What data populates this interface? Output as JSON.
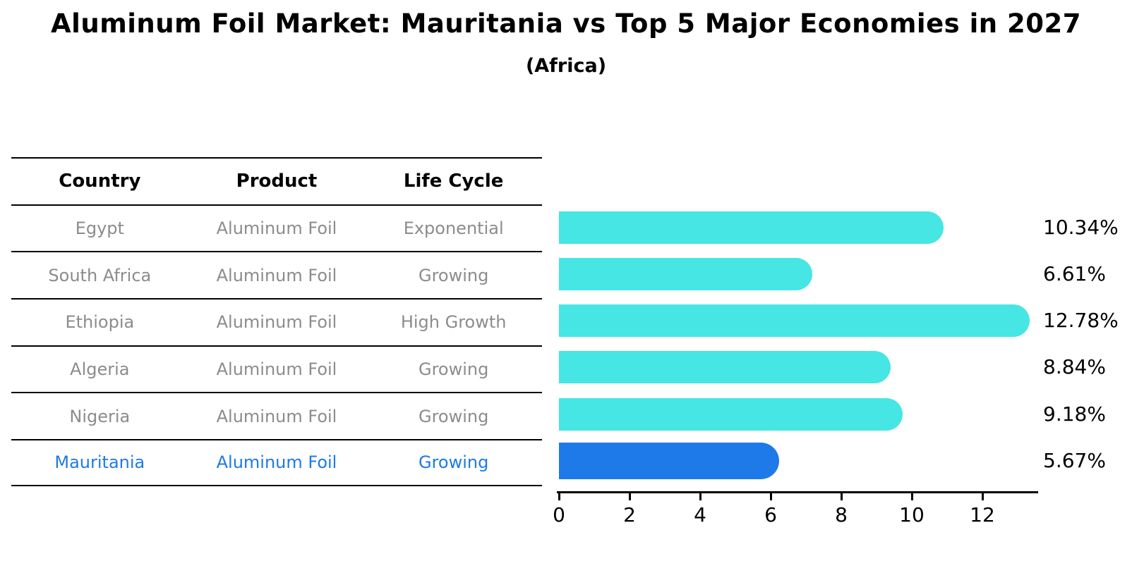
{
  "title": "Aluminum Foil Market: Mauritania vs Top 5 Major Economies in 2027",
  "subtitle": "(Africa)",
  "table": {
    "headers": [
      "Country",
      "Product",
      "Life Cycle"
    ],
    "rows": [
      {
        "country": "Egypt",
        "product": "Aluminum Foil",
        "life_cycle": "Exponential",
        "highlighted": false
      },
      {
        "country": "South Africa",
        "product": "Aluminum Foil",
        "life_cycle": "Growing",
        "highlighted": false
      },
      {
        "country": "Ethiopia",
        "product": "Aluminum Foil",
        "life_cycle": "High Growth",
        "highlighted": false
      },
      {
        "country": "Algeria",
        "product": "Aluminum Foil",
        "life_cycle": "Growing",
        "highlighted": false
      },
      {
        "country": "Nigeria",
        "product": "Aluminum Foil",
        "life_cycle": "Growing",
        "highlighted": false
      },
      {
        "country": "Mauritania",
        "product": "Aluminum Foil",
        "life_cycle": "Growing",
        "highlighted": true
      }
    ]
  },
  "chart_data": {
    "type": "bar",
    "orientation": "horizontal",
    "title": "Aluminum Foil Market: Mauritania vs Top 5 Major Economies in 2027",
    "subtitle": "(Africa)",
    "categories": [
      "Egypt",
      "South Africa",
      "Ethiopia",
      "Algeria",
      "Nigeria",
      "Mauritania"
    ],
    "values": [
      10.34,
      6.61,
      12.78,
      8.84,
      9.18,
      5.67
    ],
    "value_labels": [
      "10.34%",
      "6.61%",
      "12.78%",
      "8.84%",
      "9.18%",
      "5.67%"
    ],
    "highlight_index": 5,
    "xlim": [
      0,
      13.5
    ],
    "xticks": [
      0,
      2,
      4,
      6,
      8,
      10,
      12
    ],
    "grid": false,
    "legend": false,
    "bar_color": "#45e6e3",
    "highlight_color": "#1e7ae8"
  },
  "colors": {
    "bar": "#45e6e3",
    "highlight": "#1e7ae8",
    "table_text": "#8c8c8c",
    "header_text": "#000000",
    "line": "#000000",
    "background": "#ffffff"
  }
}
